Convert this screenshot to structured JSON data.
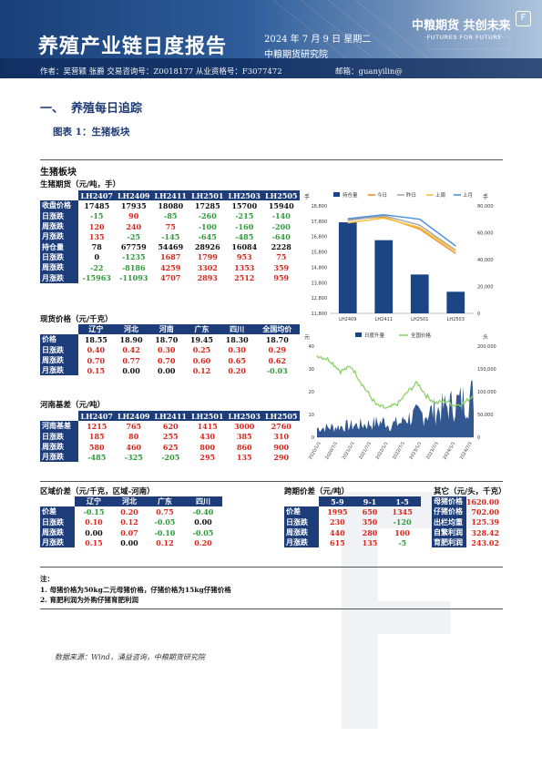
{
  "header": {
    "title": "养殖产业链日度报告",
    "date": "2024 年 7 月 9 日 星期二",
    "institution": "中粮期货研究院",
    "logo_cn": "中粮期货  共创未来",
    "logo_en": "·FUTURES FOR FUTURE·",
    "badge": "F",
    "authors": "作者：吴营颖   张爵   交易咨询号：Z0018177 从业资格号：F3077472",
    "email": "邮箱：guanyilin@"
  },
  "section": {
    "num": "一、",
    "title": "养殖每日追踪",
    "figure": "图表 1：生猪板块"
  },
  "pig_block_title": "生猪板块",
  "futures": {
    "title": "生猪期货（元/吨，手）",
    "columns": [
      "",
      "LH2407",
      "LH2409",
      "LH2411",
      "LH2501",
      "LH2503",
      "LH2505"
    ],
    "rows": [
      {
        "label": "收盘价格",
        "cells": [
          [
            "17485",
            "blk"
          ],
          [
            "17935",
            "blk"
          ],
          [
            "18080",
            "blk"
          ],
          [
            "17285",
            "blk"
          ],
          [
            "15700",
            "blk"
          ],
          [
            "15940",
            "blk"
          ]
        ]
      },
      {
        "label": "日涨跌",
        "cells": [
          [
            "-15",
            "grn"
          ],
          [
            "90",
            "red"
          ],
          [
            "-85",
            "grn"
          ],
          [
            "-260",
            "grn"
          ],
          [
            "-215",
            "grn"
          ],
          [
            "-140",
            "grn"
          ]
        ]
      },
      {
        "label": "周涨跌",
        "cells": [
          [
            "120",
            "red"
          ],
          [
            "240",
            "red"
          ],
          [
            "75",
            "red"
          ],
          [
            "-100",
            "grn"
          ],
          [
            "-160",
            "grn"
          ],
          [
            "-200",
            "grn"
          ]
        ]
      },
      {
        "label": "月涨跌",
        "cells": [
          [
            "135",
            "red"
          ],
          [
            "-25",
            "grn"
          ],
          [
            "-145",
            "grn"
          ],
          [
            "-645",
            "grn"
          ],
          [
            "-485",
            "grn"
          ],
          [
            "-640",
            "grn"
          ]
        ]
      },
      {
        "label": "持仓量",
        "cells": [
          [
            "78",
            "blk"
          ],
          [
            "67759",
            "blk"
          ],
          [
            "54469",
            "blk"
          ],
          [
            "28926",
            "blk"
          ],
          [
            "16084",
            "blk"
          ],
          [
            "2228",
            "blk"
          ]
        ]
      },
      {
        "label": "日涨跌",
        "cells": [
          [
            "0",
            "blk"
          ],
          [
            "-1235",
            "grn"
          ],
          [
            "1687",
            "red"
          ],
          [
            "1799",
            "red"
          ],
          [
            "953",
            "red"
          ],
          [
            "75",
            "red"
          ]
        ]
      },
      {
        "label": "周涨跌",
        "cells": [
          [
            "-22",
            "grn"
          ],
          [
            "-8186",
            "grn"
          ],
          [
            "4259",
            "red"
          ],
          [
            "3302",
            "red"
          ],
          [
            "1353",
            "red"
          ],
          [
            "359",
            "red"
          ]
        ]
      },
      {
        "label": "月涨跌",
        "cells": [
          [
            "-15963",
            "grn"
          ],
          [
            "-11093",
            "grn"
          ],
          [
            "4707",
            "red"
          ],
          [
            "2893",
            "red"
          ],
          [
            "2512",
            "red"
          ],
          [
            "959",
            "red"
          ]
        ]
      }
    ]
  },
  "spot": {
    "title": "现货价格（元/千克）",
    "columns": [
      "",
      "辽宁",
      "河北",
      "河南",
      "广东",
      "四川",
      "全国均价"
    ],
    "rows": [
      {
        "label": "价格",
        "cells": [
          [
            "18.55",
            "blk"
          ],
          [
            "18.90",
            "blk"
          ],
          [
            "18.70",
            "blk"
          ],
          [
            "19.45",
            "blk"
          ],
          [
            "18.30",
            "blk"
          ],
          [
            "18.70",
            "blk"
          ]
        ]
      },
      {
        "label": "日涨跌",
        "cells": [
          [
            "0.40",
            "red"
          ],
          [
            "0.42",
            "red"
          ],
          [
            "0.30",
            "red"
          ],
          [
            "0.25",
            "red"
          ],
          [
            "0.30",
            "red"
          ],
          [
            "0.29",
            "red"
          ]
        ]
      },
      {
        "label": "周涨跌",
        "cells": [
          [
            "0.70",
            "red"
          ],
          [
            "0.77",
            "red"
          ],
          [
            "0.70",
            "red"
          ],
          [
            "0.60",
            "red"
          ],
          [
            "0.65",
            "red"
          ],
          [
            "0.62",
            "red"
          ]
        ]
      },
      {
        "label": "月涨跌",
        "cells": [
          [
            "0.15",
            "red"
          ],
          [
            "0.00",
            "blk"
          ],
          [
            "0.00",
            "blk"
          ],
          [
            "0.12",
            "red"
          ],
          [
            "0.20",
            "red"
          ],
          [
            "-0.03",
            "grn"
          ]
        ]
      }
    ]
  },
  "basis": {
    "title": "河南基差（元/吨）",
    "columns": [
      "",
      "LH2407",
      "LH2409",
      "LH2411",
      "LH2501",
      "LH2503",
      "LH2505"
    ],
    "rows": [
      {
        "label": "河南基差",
        "cells": [
          [
            "1215",
            "red"
          ],
          [
            "765",
            "red"
          ],
          [
            "620",
            "red"
          ],
          [
            "1415",
            "red"
          ],
          [
            "3000",
            "red"
          ],
          [
            "2760",
            "red"
          ]
        ]
      },
      {
        "label": "日涨跌",
        "cells": [
          [
            "185",
            "red"
          ],
          [
            "80",
            "red"
          ],
          [
            "255",
            "red"
          ],
          [
            "430",
            "red"
          ],
          [
            "385",
            "red"
          ],
          [
            "310",
            "red"
          ]
        ]
      },
      {
        "label": "周涨跌",
        "cells": [
          [
            "580",
            "red"
          ],
          [
            "460",
            "red"
          ],
          [
            "625",
            "red"
          ],
          [
            "800",
            "red"
          ],
          [
            "860",
            "red"
          ],
          [
            "900",
            "red"
          ]
        ]
      },
      {
        "label": "月涨跌",
        "cells": [
          [
            "-485",
            "grn"
          ],
          [
            "-325",
            "grn"
          ],
          [
            "-205",
            "grn"
          ],
          [
            "295",
            "red"
          ],
          [
            "135",
            "red"
          ],
          [
            "290",
            "red"
          ]
        ]
      }
    ]
  },
  "regional": {
    "title": "区域价差（元/千克，区域-河南）",
    "columns": [
      "",
      "辽宁",
      "河北",
      "广东",
      "四川"
    ],
    "rows": [
      {
        "label": "价差",
        "cells": [
          [
            "-0.15",
            "grn"
          ],
          [
            "0.20",
            "red"
          ],
          [
            "0.75",
            "red"
          ],
          [
            "-0.40",
            "grn"
          ]
        ]
      },
      {
        "label": "日涨跌",
        "cells": [
          [
            "0.10",
            "red"
          ],
          [
            "0.12",
            "red"
          ],
          [
            "-0.05",
            "grn"
          ],
          [
            "0.00",
            "blk"
          ]
        ]
      },
      {
        "label": "周涨跌",
        "cells": [
          [
            "0.00",
            "blk"
          ],
          [
            "0.07",
            "red"
          ],
          [
            "-0.10",
            "grn"
          ],
          [
            "-0.05",
            "grn"
          ]
        ]
      },
      {
        "label": "月涨跌",
        "cells": [
          [
            "0.15",
            "red"
          ],
          [
            "0.00",
            "blk"
          ],
          [
            "0.12",
            "red"
          ],
          [
            "0.20",
            "red"
          ]
        ]
      }
    ]
  },
  "spread": {
    "title": "跨期价差（元/吨）",
    "columns": [
      "",
      "5-9",
      "9-1",
      "1-5"
    ],
    "rows": [
      {
        "label": "价差",
        "cells": [
          [
            "1995",
            "red"
          ],
          [
            "650",
            "red"
          ],
          [
            "1345",
            "red"
          ]
        ]
      },
      {
        "label": "日涨跌",
        "cells": [
          [
            "230",
            "red"
          ],
          [
            "350",
            "red"
          ],
          [
            "-120",
            "grn"
          ]
        ]
      },
      {
        "label": "周涨跌",
        "cells": [
          [
            "440",
            "red"
          ],
          [
            "280",
            "red"
          ],
          [
            "100",
            "red"
          ]
        ]
      },
      {
        "label": "月涨跌",
        "cells": [
          [
            "615",
            "red"
          ],
          [
            "135",
            "red"
          ],
          [
            "-5",
            "grn"
          ]
        ]
      }
    ]
  },
  "other": {
    "title": "其它（元/头，千克）",
    "rows": [
      {
        "label": "母猪价格",
        "value": "1620.00"
      },
      {
        "label": "仔猪价格",
        "value": "702.00"
      },
      {
        "label": "出栏均重",
        "value": "125.39"
      },
      {
        "label": "自繁利润",
        "value": "328.42"
      },
      {
        "label": "育肥利润",
        "value": "243.02"
      }
    ]
  },
  "notes": {
    "heading": "注：",
    "items": [
      "1. 母猪价格为50kg二元母猪价格，仔猪价格为15kg仔猪价格",
      "2. 育肥利润为外购仔猪育肥利润"
    ]
  },
  "source": "数据来源：Wind，涌益咨询，中粮期货研究院",
  "chart_data": [
    {
      "type": "bar",
      "title": "",
      "left_unit": "手",
      "right_unit": "手",
      "categories": [
        "LH2409",
        "LH2411",
        "LH2501",
        "LH2503"
      ],
      "series": [
        {
          "name": "持仓量",
          "kind": "bar",
          "axis": "right",
          "color": "#1c4585",
          "values": [
            67759,
            54469,
            28926,
            16084
          ]
        },
        {
          "name": "今日",
          "kind": "line",
          "axis": "left",
          "color": "#f0932b",
          "values": [
            17935,
            18080,
            17285,
            15700
          ]
        },
        {
          "name": "昨日",
          "kind": "line",
          "axis": "left",
          "color": "#a9a9a9",
          "values": [
            17845,
            18165,
            17545,
            15915
          ]
        },
        {
          "name": "上周",
          "kind": "line",
          "axis": "left",
          "color": "#f5c242",
          "values": [
            17695,
            18005,
            17385,
            15860
          ]
        },
        {
          "name": "上月",
          "kind": "line",
          "axis": "left",
          "color": "#4a90e2",
          "values": [
            17960,
            18225,
            17930,
            16185
          ]
        }
      ],
      "left_ylim": [
        11800,
        18800
      ],
      "left_ticks": [
        11800,
        12800,
        13800,
        14800,
        15800,
        16800,
        17800,
        18800
      ],
      "left_tick_labels": [
        "11,800",
        "12,800",
        "13,800",
        "14,800",
        "15,800",
        "16,800",
        "17,800",
        "18,800"
      ],
      "right_ylim": [
        0,
        80000
      ],
      "right_ticks": [
        0,
        20000,
        40000,
        60000,
        80000
      ],
      "right_tick_labels": [
        "0",
        "20,000",
        "40,000",
        "60,000",
        "80,000"
      ],
      "legend": "top"
    },
    {
      "type": "area",
      "title": "",
      "left_unit": "元",
      "right_unit": "头",
      "x_labels": [
        "2020/1/1",
        "2020/7/1",
        "2021/1/1",
        "2021/7/1",
        "2022/1/1",
        "2022/7/1",
        "2023/1/1",
        "2023/7/1",
        "2024/1/1",
        "2024/7/1"
      ],
      "series": [
        {
          "name": "日度升量",
          "kind": "area",
          "axis": "right",
          "color": "#1c4585"
        },
        {
          "name": "全国价格",
          "kind": "line",
          "axis": "left",
          "color": "#8bd16a"
        }
      ],
      "left_ylim": [
        0,
        40
      ],
      "left_ticks": [
        0,
        10,
        20,
        30,
        40
      ],
      "right_ylim": [
        0,
        200000
      ],
      "right_ticks": [
        0,
        50000,
        100000,
        150000,
        200000
      ],
      "right_tick_labels": [
        "0",
        "50,000",
        "100,000",
        "150,000",
        "200,000"
      ],
      "legend": "top"
    }
  ]
}
